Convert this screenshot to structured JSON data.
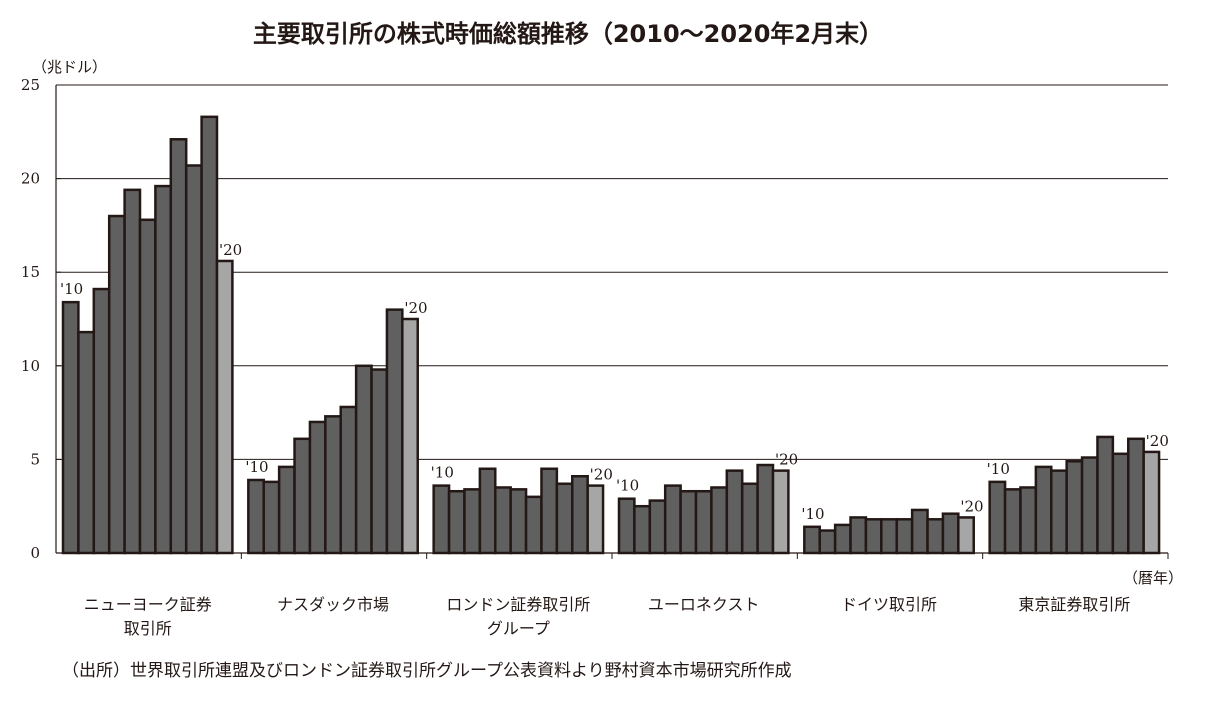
{
  "chart_data": {
    "type": "bar",
    "title": "主要取引所の株式時価総額推移（2010〜2020年2月末）",
    "ylabel": "（兆ドル）",
    "xlabel": "（暦年）",
    "ylim": [
      0,
      25
    ],
    "yticks": [
      "0",
      "5",
      "10",
      "15",
      "20",
      "25"
    ],
    "grid": true,
    "start_label": "'10",
    "end_label": "'20",
    "colors": {
      "bar": "#606060",
      "last_bar": "#a6a6a6",
      "outline": "#231815"
    },
    "groups": [
      {
        "name_lines": [
          "ニューヨーク証券",
          "取引所"
        ],
        "values": [
          13.4,
          11.8,
          14.1,
          18.0,
          19.4,
          17.8,
          19.6,
          22.1,
          20.7,
          23.3,
          15.6
        ]
      },
      {
        "name_lines": [
          "ナスダック市場"
        ],
        "values": [
          3.9,
          3.8,
          4.6,
          6.1,
          7.0,
          7.3,
          7.8,
          10.0,
          9.8,
          13.0,
          12.5
        ]
      },
      {
        "name_lines": [
          "ロンドン証券取引所",
          "グループ"
        ],
        "values": [
          3.6,
          3.3,
          3.4,
          4.5,
          3.5,
          3.4,
          3.0,
          4.5,
          3.7,
          4.1,
          3.6
        ]
      },
      {
        "name_lines": [
          "ユーロネクスト"
        ],
        "values": [
          2.9,
          2.5,
          2.8,
          3.6,
          3.3,
          3.3,
          3.5,
          4.4,
          3.7,
          4.7,
          4.4
        ]
      },
      {
        "name_lines": [
          "ドイツ取引所"
        ],
        "values": [
          1.4,
          1.2,
          1.5,
          1.9,
          1.8,
          1.8,
          1.8,
          2.3,
          1.8,
          2.1,
          1.9
        ]
      },
      {
        "name_lines": [
          "東京証券取引所"
        ],
        "values": [
          3.8,
          3.4,
          3.5,
          4.6,
          4.4,
          4.9,
          5.1,
          6.2,
          5.3,
          6.1,
          5.4
        ]
      }
    ]
  },
  "source": "（出所）世界取引所連盟及びロンドン証券取引所グループ公表資料より野村資本市場研究所作成"
}
